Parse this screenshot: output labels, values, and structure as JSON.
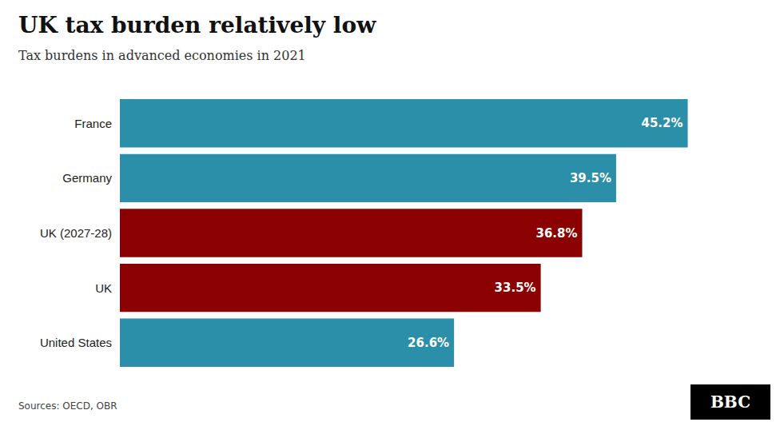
{
  "chart_data": {
    "type": "bar",
    "orientation": "horizontal",
    "title": "UK tax burden relatively low",
    "subtitle": "Tax burdens in advanced economies in 2021",
    "annotations": [
      "Sources: OECD, OBR",
      "BBC"
    ],
    "categories": [
      "France",
      "Germany",
      "UK (2027-28)",
      "UK",
      "United States"
    ],
    "values": [
      45.2,
      39.5,
      36.8,
      33.5,
      26.6
    ],
    "value_labels": [
      "45.2%",
      "39.5%",
      "36.8%",
      "33.5%",
      "26.6%"
    ],
    "colors": [
      "#2b8faa",
      "#2b8faa",
      "#8b0000",
      "#8b0000",
      "#2b8faa"
    ],
    "xlim": [
      0,
      50
    ],
    "data_labels": true,
    "tick_labels": "y",
    "grid": false
  }
}
